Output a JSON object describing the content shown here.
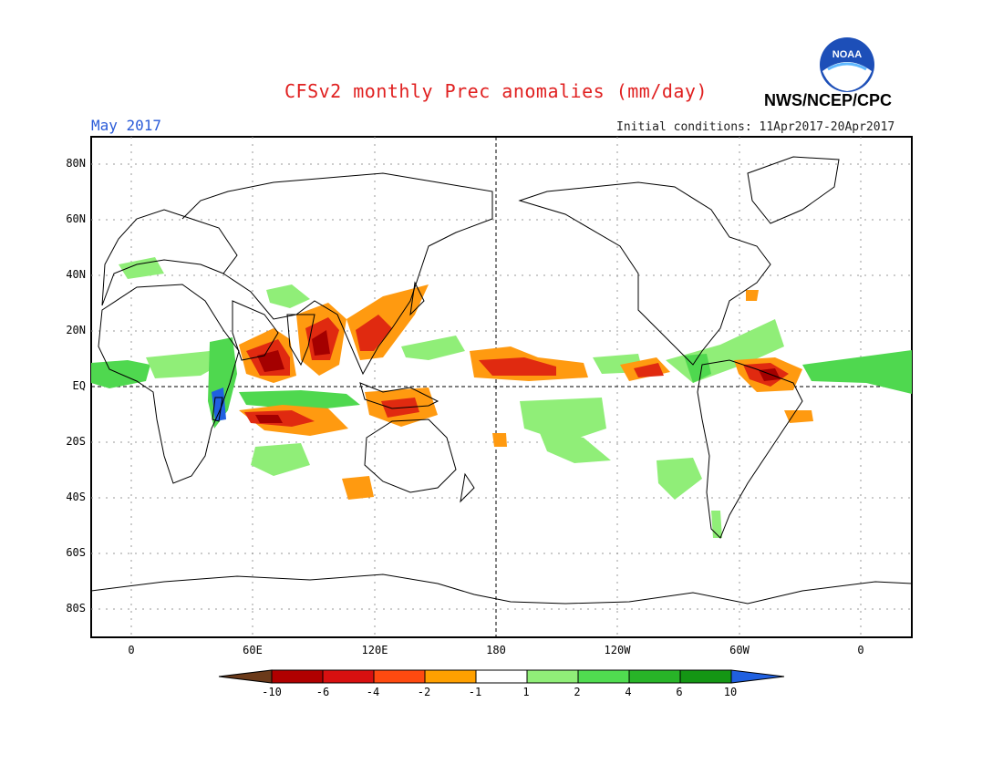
{
  "header": {
    "title": "CFSv2 monthly Prec anomalies (mm/day)",
    "agency": "NWS/NCEP/CPC",
    "month": "May 2017",
    "initial_conditions": "Initial conditions: 11Apr2017-20Apr2017",
    "logo_text": "NOAA"
  },
  "axes": {
    "lat_labels": [
      "80N",
      "60N",
      "40N",
      "20N",
      "EQ",
      "20S",
      "40S",
      "60S",
      "80S"
    ],
    "lat_values": [
      80,
      60,
      40,
      20,
      0,
      -20,
      -40,
      -60,
      -80
    ],
    "lon_labels": [
      "0",
      "60E",
      "120E",
      "180",
      "120W",
      "60W",
      "0"
    ],
    "lon_values": [
      0,
      60,
      120,
      180,
      240,
      300,
      360
    ]
  },
  "colorbar": {
    "labels": [
      "-10",
      "-6",
      "-4",
      "-2",
      "-1",
      "1",
      "2",
      "4",
      "6",
      "10"
    ],
    "colors": [
      "#6b3a1a",
      "#b00000",
      "#d81010",
      "#ff4a10",
      "#ffa000",
      "#ffffff",
      "#90ee78",
      "#50dc50",
      "#28b428",
      "#149614",
      "#2060e0"
    ]
  },
  "palette": {
    "dry_strong": "#a40000",
    "dry_mid": "#e02a10",
    "dry_weak": "#ff9a10",
    "wet_weak": "#90ee78",
    "wet_mid": "#4fd84f",
    "wet_strong": "#1f9a2a",
    "wet_extreme": "#2060e0",
    "title_color": "#e02020",
    "month_color": "#2a5bd8"
  }
}
